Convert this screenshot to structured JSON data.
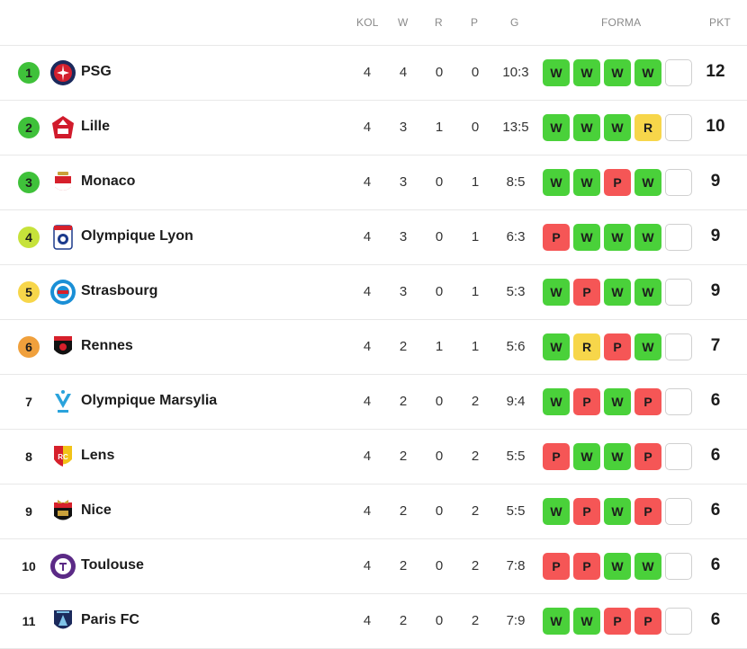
{
  "headers": {
    "kol": "KOL",
    "w": "W",
    "r": "R",
    "p": "P",
    "g": "G",
    "forma": "FORMA",
    "pkt": "PKT"
  },
  "colors": {
    "W": "#4ad13a",
    "R": "#f7d64a",
    "P": "#f55656",
    "rank_green": "#3fc13a",
    "rank_lime": "#c6e23a",
    "rank_yellow": "#f7d64a",
    "rank_orange": "#f0a03c"
  },
  "rows": [
    {
      "rank": "1",
      "rank_color": "rank_green",
      "team": "PSG",
      "logo": "psg-logo",
      "kol": "4",
      "w": "4",
      "r": "0",
      "p": "0",
      "g": "10:3",
      "form": [
        "W",
        "W",
        "W",
        "W"
      ],
      "pkt": "12"
    },
    {
      "rank": "2",
      "rank_color": "rank_green",
      "team": "Lille",
      "logo": "lille-logo",
      "kol": "4",
      "w": "3",
      "r": "1",
      "p": "0",
      "g": "13:5",
      "form": [
        "W",
        "W",
        "W",
        "R"
      ],
      "pkt": "10"
    },
    {
      "rank": "3",
      "rank_color": "rank_green",
      "team": "Monaco",
      "logo": "monaco-logo",
      "kol": "4",
      "w": "3",
      "r": "0",
      "p": "1",
      "g": "8:5",
      "form": [
        "W",
        "W",
        "P",
        "W"
      ],
      "pkt": "9"
    },
    {
      "rank": "4",
      "rank_color": "rank_lime",
      "team": "Olympique Lyon",
      "logo": "lyon-logo",
      "kol": "4",
      "w": "3",
      "r": "0",
      "p": "1",
      "g": "6:3",
      "form": [
        "P",
        "W",
        "W",
        "W"
      ],
      "pkt": "9"
    },
    {
      "rank": "5",
      "rank_color": "rank_yellow",
      "team": "Strasbourg",
      "logo": "strasbourg-logo",
      "kol": "4",
      "w": "3",
      "r": "0",
      "p": "1",
      "g": "5:3",
      "form": [
        "W",
        "P",
        "W",
        "W"
      ],
      "pkt": "9"
    },
    {
      "rank": "6",
      "rank_color": "rank_orange",
      "team": "Rennes",
      "logo": "rennes-logo",
      "kol": "4",
      "w": "2",
      "r": "1",
      "p": "1",
      "g": "5:6",
      "form": [
        "W",
        "R",
        "P",
        "W"
      ],
      "pkt": "7"
    },
    {
      "rank": "7",
      "rank_color": "",
      "team": "Olympique Marsylia",
      "logo": "marseille-logo",
      "kol": "4",
      "w": "2",
      "r": "0",
      "p": "2",
      "g": "9:4",
      "form": [
        "W",
        "P",
        "W",
        "P"
      ],
      "pkt": "6"
    },
    {
      "rank": "8",
      "rank_color": "",
      "team": "Lens",
      "logo": "lens-logo",
      "kol": "4",
      "w": "2",
      "r": "0",
      "p": "2",
      "g": "5:5",
      "form": [
        "P",
        "W",
        "W",
        "P"
      ],
      "pkt": "6"
    },
    {
      "rank": "9",
      "rank_color": "",
      "team": "Nice",
      "logo": "nice-logo",
      "kol": "4",
      "w": "2",
      "r": "0",
      "p": "2",
      "g": "5:5",
      "form": [
        "W",
        "P",
        "W",
        "P"
      ],
      "pkt": "6"
    },
    {
      "rank": "10",
      "rank_color": "",
      "team": "Toulouse",
      "logo": "toulouse-logo",
      "kol": "4",
      "w": "2",
      "r": "0",
      "p": "2",
      "g": "7:8",
      "form": [
        "P",
        "P",
        "W",
        "W"
      ],
      "pkt": "6"
    },
    {
      "rank": "11",
      "rank_color": "",
      "team": "Paris FC",
      "logo": "parisfc-logo",
      "kol": "4",
      "w": "2",
      "r": "0",
      "p": "2",
      "g": "7:9",
      "form": [
        "W",
        "W",
        "P",
        "P"
      ],
      "pkt": "6"
    }
  ]
}
